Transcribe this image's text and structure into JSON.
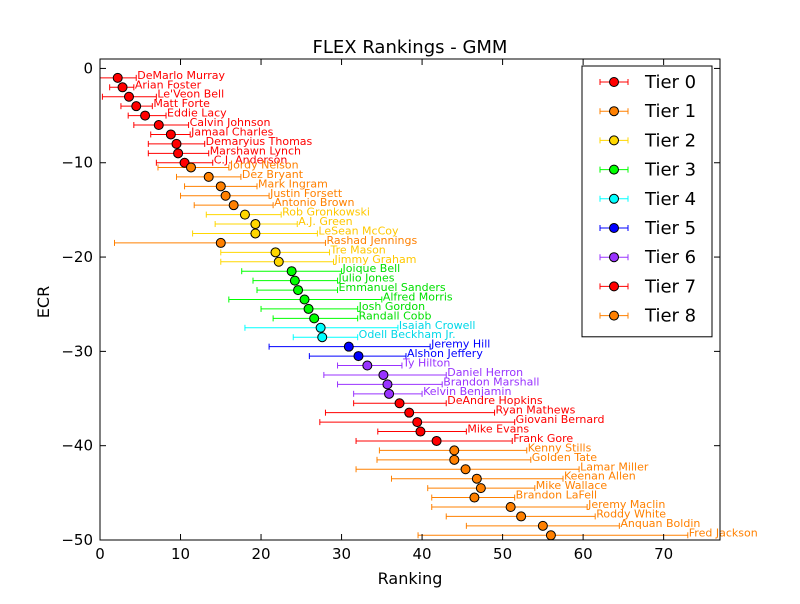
{
  "chart_data": {
    "type": "scatter",
    "title": "FLEX Rankings - GMM",
    "xlabel": "Ranking",
    "ylabel": "ECR",
    "xlim": [
      0,
      77
    ],
    "ylim": [
      -50,
      1
    ],
    "x_ticks": [
      0,
      10,
      20,
      30,
      40,
      50,
      60,
      70
    ],
    "x_tick_labels": [
      "0",
      "10",
      "20",
      "30",
      "40",
      "50",
      "60",
      "70"
    ],
    "y_ticks": [
      0,
      -10,
      -20,
      -30,
      -40,
      -50
    ],
    "y_tick_labels": [
      "0",
      "−10",
      "−20",
      "−30",
      "−40",
      "−50"
    ],
    "grid": false,
    "legend": {
      "placement": "top-right"
    },
    "series": [
      {
        "name": "Tier 0",
        "color": "#ff0000",
        "label_color": "#ff0000",
        "points": [
          {
            "player": "DeMarlo Murray",
            "x": 2.2,
            "y": -1,
            "xmin": 0,
            "xmax": 4.5
          },
          {
            "player": "Arian Foster",
            "x": 2.8,
            "y": -2,
            "xmin": 1.2,
            "xmax": 4.2
          },
          {
            "player": "Le'Veon Bell",
            "x": 3.6,
            "y": -3,
            "xmin": 0.3,
            "xmax": 7.0
          },
          {
            "player": "Matt Forte",
            "x": 4.5,
            "y": -4,
            "xmin": 2.6,
            "xmax": 6.5
          },
          {
            "player": "Eddie Lacy",
            "x": 5.6,
            "y": -5,
            "xmin": 3.5,
            "xmax": 8.2
          },
          {
            "player": "Calvin Johnson",
            "x": 7.3,
            "y": -6,
            "xmin": 4.2,
            "xmax": 11.0
          },
          {
            "player": "Jamaal Charles",
            "x": 8.8,
            "y": -7,
            "xmin": 6.3,
            "xmax": 11.2
          },
          {
            "player": "Demaryius Thomas",
            "x": 9.5,
            "y": -8,
            "xmin": 6.0,
            "xmax": 13.0
          },
          {
            "player": "Marshawn Lynch",
            "x": 9.7,
            "y": -9,
            "xmin": 6.0,
            "xmax": 13.5
          },
          {
            "player": "C.J. Anderson",
            "x": 10.5,
            "y": -10,
            "xmin": 7.0,
            "xmax": 14.0
          }
        ]
      },
      {
        "name": "Tier 1",
        "color": "#ff8000",
        "label_color": "#ff8000",
        "points": [
          {
            "player": "Jordy Nelson",
            "x": 11.3,
            "y": -10.5,
            "xmin": 7.2,
            "xmax": 16.0
          },
          {
            "player": "Dez Bryant",
            "x": 13.5,
            "y": -11.5,
            "xmin": 9.5,
            "xmax": 17.5
          },
          {
            "player": "Mark Ingram",
            "x": 15.0,
            "y": -12.5,
            "xmin": 10.5,
            "xmax": 19.5
          },
          {
            "player": "Justin Forsett",
            "x": 15.6,
            "y": -13.5,
            "xmin": 10.0,
            "xmax": 21.0
          },
          {
            "player": "Antonio Brown",
            "x": 16.6,
            "y": -14.5,
            "xmin": 11.7,
            "xmax": 21.5
          }
        ]
      },
      {
        "name": "Tier 2",
        "color": "#ffd700",
        "label_color": "#ffc800",
        "points": [
          {
            "player": "Rob Gronkowski",
            "x": 18.0,
            "y": -15.5,
            "xmin": 13.2,
            "xmax": 22.5
          },
          {
            "player": "A.J. Green",
            "x": 19.3,
            "y": -16.5,
            "xmin": 14.3,
            "xmax": 24.5
          },
          {
            "player": "LeSean McCoy",
            "x": 19.3,
            "y": -17.5,
            "xmin": 11.5,
            "xmax": 27.0
          }
        ]
      },
      {
        "name": "Tier 1",
        "color": "#ff8000",
        "label_color": "#ff8000",
        "points": [
          {
            "player": "Rashad Jennings",
            "x": 15.0,
            "y": -18.5,
            "xmin": 1.8,
            "xmax": 28.0
          }
        ]
      },
      {
        "name": "Tier 2",
        "color": "#ffd700",
        "label_color": "#ffc800",
        "points": [
          {
            "player": "Tre Mason",
            "x": 21.8,
            "y": -19.5,
            "xmin": 15.0,
            "xmax": 28.5
          },
          {
            "player": "Jimmy Graham",
            "x": 22.2,
            "y": -20.5,
            "xmin": 15.0,
            "xmax": 29.0
          }
        ]
      },
      {
        "name": "Tier 3",
        "color": "#00ff00",
        "label_color": "#00e000",
        "points": [
          {
            "player": "Joique Bell",
            "x": 23.8,
            "y": -21.5,
            "xmin": 17.6,
            "xmax": 30.0
          },
          {
            "player": "Julio Jones",
            "x": 24.2,
            "y": -22.5,
            "xmin": 19.0,
            "xmax": 29.5
          },
          {
            "player": "Emmanuel Sanders",
            "x": 24.6,
            "y": -23.5,
            "xmin": 19.5,
            "xmax": 29.5
          },
          {
            "player": "Alfred Morris",
            "x": 25.4,
            "y": -24.5,
            "xmin": 16.0,
            "xmax": 35.0
          },
          {
            "player": "Josh Gordon",
            "x": 25.9,
            "y": -25.5,
            "xmin": 20.0,
            "xmax": 32.0
          },
          {
            "player": "Randall Cobb",
            "x": 26.6,
            "y": -26.5,
            "xmin": 21.5,
            "xmax": 32.0
          }
        ]
      },
      {
        "name": "Tier 4",
        "color": "#00ffff",
        "label_color": "#00d8e8",
        "points": [
          {
            "player": "Isaiah Crowell",
            "x": 27.4,
            "y": -27.5,
            "xmin": 18.0,
            "xmax": 37.0
          },
          {
            "player": "Odell Beckham Jr.",
            "x": 27.6,
            "y": -28.5,
            "xmin": 24.0,
            "xmax": 32.0
          }
        ]
      },
      {
        "name": "Tier 5",
        "color": "#0000ff",
        "label_color": "#0000ff",
        "points": [
          {
            "player": "Jeremy Hill",
            "x": 30.9,
            "y": -29.5,
            "xmin": 21.0,
            "xmax": 41.0
          },
          {
            "player": "Alshon Jeffery",
            "x": 32.1,
            "y": -30.5,
            "xmin": 26.0,
            "xmax": 38.0
          }
        ]
      },
      {
        "name": "Tier 6",
        "color": "#9933ff",
        "label_color": "#9933ff",
        "points": [
          {
            "player": "Ty Hilton",
            "x": 33.2,
            "y": -31.5,
            "xmin": 29.5,
            "xmax": 37.5
          },
          {
            "player": "Daniel Herron",
            "x": 35.2,
            "y": -32.5,
            "xmin": 27.8,
            "xmax": 43.0
          },
          {
            "player": "Brandon Marshall",
            "x": 35.7,
            "y": -33.5,
            "xmin": 29.5,
            "xmax": 42.5
          },
          {
            "player": "Kelvin Benjamin",
            "x": 35.9,
            "y": -34.5,
            "xmin": 31.5,
            "xmax": 40.0
          }
        ]
      },
      {
        "name": "Tier 7",
        "color": "#ff0000",
        "label_color": "#ff0000",
        "points": [
          {
            "player": "DeAndre Hopkins",
            "x": 37.2,
            "y": -35.5,
            "xmin": 31.5,
            "xmax": 43.0
          },
          {
            "player": "Ryan Mathews",
            "x": 38.4,
            "y": -36.5,
            "xmin": 28.0,
            "xmax": 49.0
          },
          {
            "player": "Giovani Bernard",
            "x": 39.4,
            "y": -37.5,
            "xmin": 27.3,
            "xmax": 51.5
          },
          {
            "player": "Mike Evans",
            "x": 39.8,
            "y": -38.5,
            "xmin": 34.5,
            "xmax": 45.5
          },
          {
            "player": "Frank Gore",
            "x": 41.8,
            "y": -39.5,
            "xmin": 31.8,
            "xmax": 51.2
          }
        ]
      },
      {
        "name": "Tier 8",
        "color": "#ff8000",
        "label_color": "#ff8000",
        "points": [
          {
            "player": "Kenny Stills",
            "x": 44.0,
            "y": -40.5,
            "xmin": 34.7,
            "xmax": 53.0
          },
          {
            "player": "Golden Tate",
            "x": 44.0,
            "y": -41.5,
            "xmin": 34.4,
            "xmax": 53.5
          },
          {
            "player": "Lamar Miller",
            "x": 45.4,
            "y": -42.5,
            "xmin": 31.8,
            "xmax": 59.5
          },
          {
            "player": "Keenan Allen",
            "x": 46.8,
            "y": -43.5,
            "xmin": 36.2,
            "xmax": 57.5
          },
          {
            "player": "Mike Wallace",
            "x": 47.3,
            "y": -44.5,
            "xmin": 40.7,
            "xmax": 54.0
          },
          {
            "player": "Brandon LaFell",
            "x": 46.5,
            "y": -45.5,
            "xmin": 41.2,
            "xmax": 51.5
          },
          {
            "player": "Jeremy Maclin",
            "x": 51.0,
            "y": -46.5,
            "xmin": 41.2,
            "xmax": 60.5
          },
          {
            "player": "Roddy White",
            "x": 52.3,
            "y": -47.5,
            "xmin": 43.0,
            "xmax": 61.5
          },
          {
            "player": "Anquan Boldin",
            "x": 55.0,
            "y": -48.5,
            "xmin": 45.5,
            "xmax": 64.5
          },
          {
            "player": "Fred Jackson",
            "x": 56.0,
            "y": -49.5,
            "xmin": 39.5,
            "xmax": 73.0
          }
        ]
      }
    ],
    "legend_entries": [
      {
        "label": "Tier 0",
        "color": "#ff0000"
      },
      {
        "label": "Tier 1",
        "color": "#ff8000"
      },
      {
        "label": "Tier 2",
        "color": "#ffd700"
      },
      {
        "label": "Tier 3",
        "color": "#00ff00"
      },
      {
        "label": "Tier 4",
        "color": "#00ffff"
      },
      {
        "label": "Tier 5",
        "color": "#0000ff"
      },
      {
        "label": "Tier 6",
        "color": "#9933ff"
      },
      {
        "label": "Tier 7",
        "color": "#ff0000"
      },
      {
        "label": "Tier 8",
        "color": "#ff8000"
      }
    ]
  }
}
